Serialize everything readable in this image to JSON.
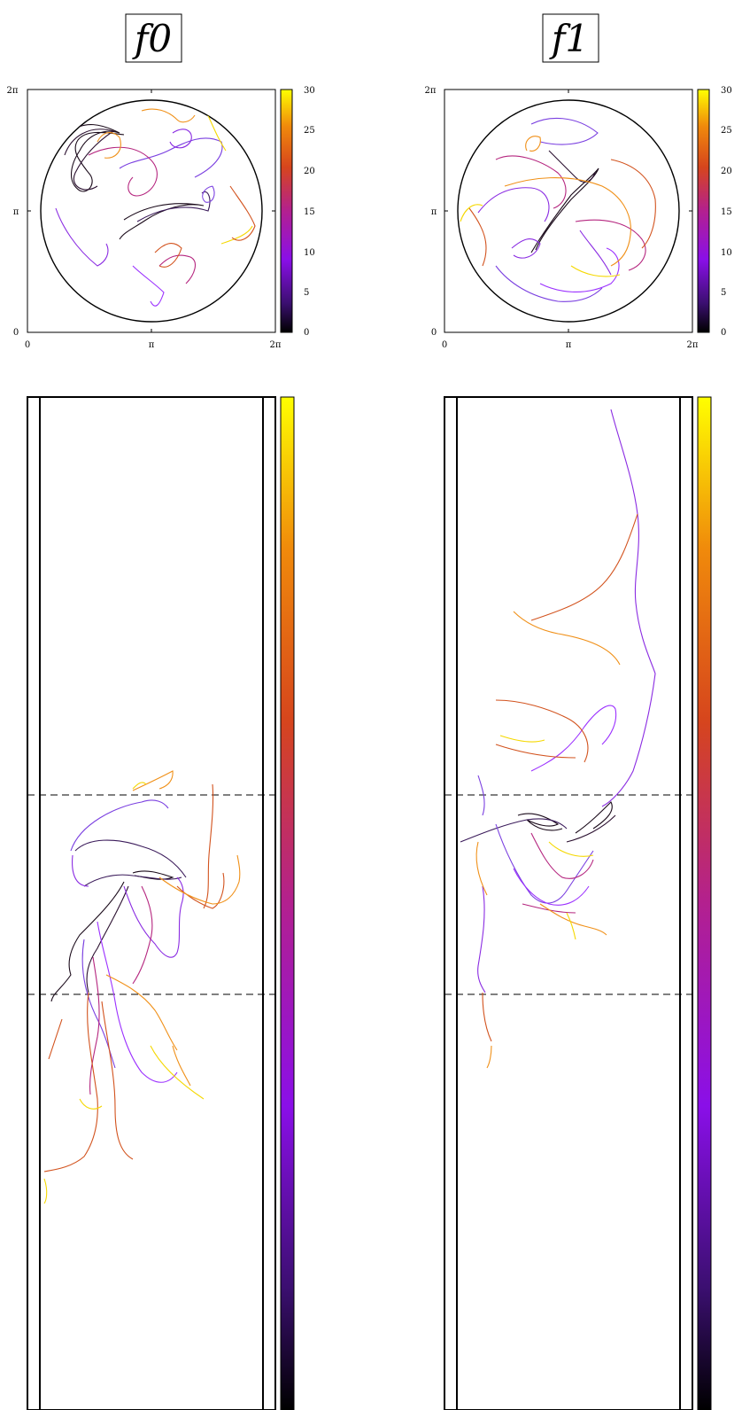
{
  "panels": [
    {
      "title": "f0"
    },
    {
      "title": "f1"
    }
  ],
  "axes": {
    "x_ticks": [
      "0",
      "π",
      "2π"
    ],
    "y_ticks": [
      "0",
      "π",
      "2π"
    ]
  },
  "colorbar": {
    "ticks": [
      "0",
      "5",
      "10",
      "15",
      "20",
      "25",
      "30"
    ],
    "min": 0,
    "max": 30,
    "colormap": [
      "#000000",
      "#3b0f70",
      "#8a0fe8",
      "#b3208f",
      "#d6451d",
      "#f08a0b",
      "#ffe000",
      "#ffff00"
    ]
  },
  "colors": {
    "black": "#000000",
    "dark_purple": "#3a1a5a",
    "purple": "#8a2be2",
    "violet": "#7a3fe0",
    "magenta": "#b5267f",
    "red_orange": "#d2521d",
    "orange": "#f09018",
    "yellow": "#f5d800"
  }
}
